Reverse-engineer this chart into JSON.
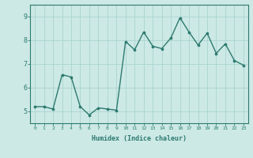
{
  "x": [
    0,
    1,
    2,
    3,
    4,
    5,
    6,
    7,
    8,
    9,
    10,
    11,
    12,
    13,
    14,
    15,
    16,
    17,
    18,
    19,
    20,
    21,
    22,
    23
  ],
  "y": [
    5.2,
    5.2,
    5.1,
    6.55,
    6.45,
    5.2,
    4.85,
    5.15,
    5.1,
    5.05,
    7.95,
    7.6,
    8.35,
    7.75,
    7.65,
    8.1,
    8.95,
    8.35,
    7.8,
    8.3,
    7.45,
    7.85,
    7.15,
    6.95
  ],
  "line_color": "#2d7a6e",
  "marker": "o",
  "markersize": 2.2,
  "linewidth": 1.0,
  "xlabel": "Humidex (Indice chaleur)",
  "xlim": [
    -0.5,
    23.5
  ],
  "ylim": [
    4.5,
    9.5
  ],
  "yticks": [
    5,
    6,
    7,
    8,
    9
  ],
  "xticks": [
    0,
    1,
    2,
    3,
    4,
    5,
    6,
    7,
    8,
    9,
    10,
    11,
    12,
    13,
    14,
    15,
    16,
    17,
    18,
    19,
    20,
    21,
    22,
    23
  ],
  "bg_color": "#cce9e6",
  "grid_color": "#aad4cf",
  "tick_color": "#2d7a6e",
  "label_color": "#2d7a6e",
  "spine_color": "#2d7a6e"
}
